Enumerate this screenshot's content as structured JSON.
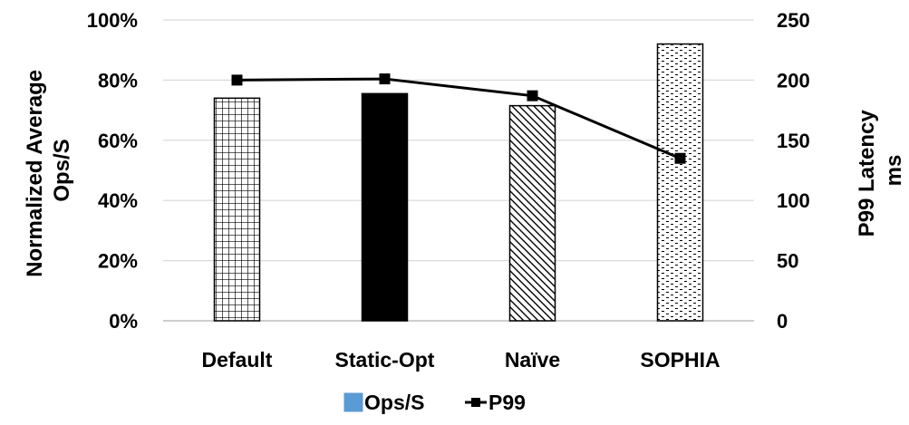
{
  "chart_data": {
    "type": "bar",
    "categories": [
      "Default",
      "Static-Opt",
      "Naïve",
      "SOPHIA"
    ],
    "series": [
      {
        "name": "Ops/S",
        "type": "bar",
        "axis": "left",
        "values": [
          74,
          75.5,
          71.5,
          92
        ],
        "color": "#5b9bd5"
      },
      {
        "name": "P99",
        "type": "line",
        "axis": "right",
        "values": [
          200,
          201,
          187,
          135
        ],
        "color": "#000000"
      }
    ],
    "bar_patterns": [
      "grid",
      "solid",
      "diagonal",
      "dots"
    ],
    "y_left": {
      "label_lines": [
        "Normalized Average",
        "Ops/S"
      ],
      "range": [
        0,
        100
      ],
      "ticks": [
        "0%",
        "20%",
        "40%",
        "60%",
        "80%",
        "100%"
      ],
      "tick_values": [
        0,
        20,
        40,
        60,
        80,
        100
      ]
    },
    "y_right": {
      "label_lines": [
        "P99 Latency",
        "ms"
      ],
      "range": [
        0,
        250
      ],
      "ticks": [
        "0",
        "50",
        "100",
        "150",
        "200",
        "250"
      ],
      "tick_values": [
        0,
        50,
        100,
        150,
        200,
        250
      ]
    },
    "grid": true,
    "legend": {
      "position": "bottom",
      "items": [
        "Ops/S",
        "P99"
      ]
    }
  }
}
